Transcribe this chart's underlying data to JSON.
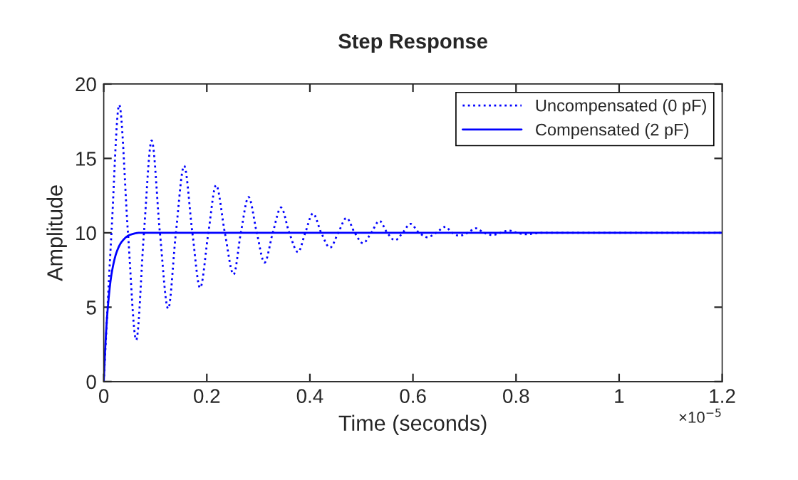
{
  "chart_data": {
    "type": "line",
    "title": "Step Response",
    "xlabel": "Time (seconds)",
    "ylabel": "Amplitude",
    "series": [
      {
        "name": "Uncompensated (0 pF)",
        "color": "#0000ff",
        "line_style": "dotted",
        "x": [
          0,
          0.015,
          0.03,
          0.047,
          0.063,
          0.078,
          0.093,
          0.109,
          0.125,
          0.14,
          0.156,
          0.172,
          0.187,
          0.203,
          0.218,
          0.235,
          0.252,
          0.266,
          0.281,
          0.297,
          0.312,
          0.328,
          0.344,
          0.36,
          0.377,
          0.391,
          0.406,
          0.422,
          0.439,
          0.455,
          0.471,
          0.487,
          0.503,
          0.519,
          0.535,
          0.55,
          0.565,
          0.58,
          0.595,
          0.612,
          0.628,
          0.645,
          0.663,
          0.676,
          0.69,
          0.706,
          0.722,
          0.738,
          0.754,
          0.77,
          0.786,
          0.802,
          0.818,
          0.85,
          0.9,
          1.2
        ],
        "values": [
          0,
          10,
          18.6,
          10,
          2.8,
          10,
          16.2,
          10,
          4.9,
          10,
          14.5,
          10,
          6.3,
          10,
          13.2,
          10,
          7.2,
          10,
          12.4,
          10,
          8.0,
          10,
          11.7,
          10,
          8.7,
          10,
          11.3,
          10,
          9.0,
          10,
          11.0,
          10,
          9.3,
          10,
          10.8,
          10,
          9.5,
          10,
          10.6,
          10,
          9.7,
          10,
          10.4,
          10,
          9.8,
          10,
          10.3,
          10,
          9.85,
          10,
          10.15,
          10,
          9.9,
          10,
          10,
          10
        ]
      },
      {
        "name": "Compensated (2 pF)",
        "color": "#0000ff",
        "line_style": "solid",
        "x": [
          0,
          0.004,
          0.008,
          0.015,
          0.025,
          0.035,
          0.05,
          0.07,
          1.2
        ],
        "values": [
          0,
          3,
          5,
          7.2,
          8.7,
          9.4,
          9.85,
          10,
          10
        ]
      }
    ],
    "xlim": [
      0,
      1.2
    ],
    "xticks": [
      0,
      0.2,
      0.4,
      0.6,
      0.8,
      1,
      1.2
    ],
    "ylim": [
      0,
      20
    ],
    "yticks": [
      0,
      5,
      10,
      15,
      20
    ],
    "annotations": [
      "×10$^{−5}$"
    ],
    "legend": "top right",
    "grid": false
  }
}
